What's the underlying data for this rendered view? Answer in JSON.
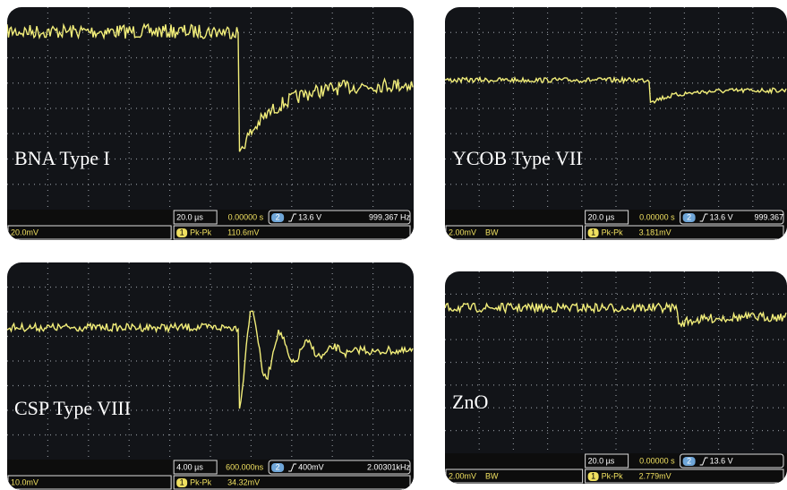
{
  "panels": [
    {
      "label": "BNA Type I",
      "timebase": "20.0 µs",
      "delay": "0.00000 s",
      "trigger_source": "2",
      "trigger_level": "13.6 V",
      "frequency": "999.367 Hz",
      "scale": "20.0mV",
      "channel": "1",
      "measure": "Pk-Pk",
      "measure_value": "110.6mV"
    },
    {
      "label": "YCOB Type VII",
      "timebase": "20.0 µs",
      "delay": "0.00000 s",
      "trigger_source": "2",
      "trigger_level": "13.6 V",
      "frequency": "999.367",
      "scale": "2.00mV",
      "bandwidth": "BW",
      "channel": "1",
      "measure": "Pk-Pk",
      "measure_value": "3.181mV"
    },
    {
      "label": "CSP Type VIII",
      "timebase": "4.00 µs",
      "delay": "600.000ns",
      "trigger_source": "2",
      "trigger_level": "400mV",
      "frequency": "2.00301kHz",
      "scale": "10.0mV",
      "channel": "1",
      "measure": "Pk-Pk",
      "measure_value": "34.32mV"
    },
    {
      "label": "ZnO",
      "timebase": "20.0 µs",
      "delay": "0.00000 s",
      "trigger_source": "2",
      "trigger_level": "13.6 V",
      "scale": "2.00mV",
      "bandwidth": "BW",
      "channel": "1",
      "measure": "Pk-Pk",
      "measure_value": "2.779mV"
    }
  ]
}
